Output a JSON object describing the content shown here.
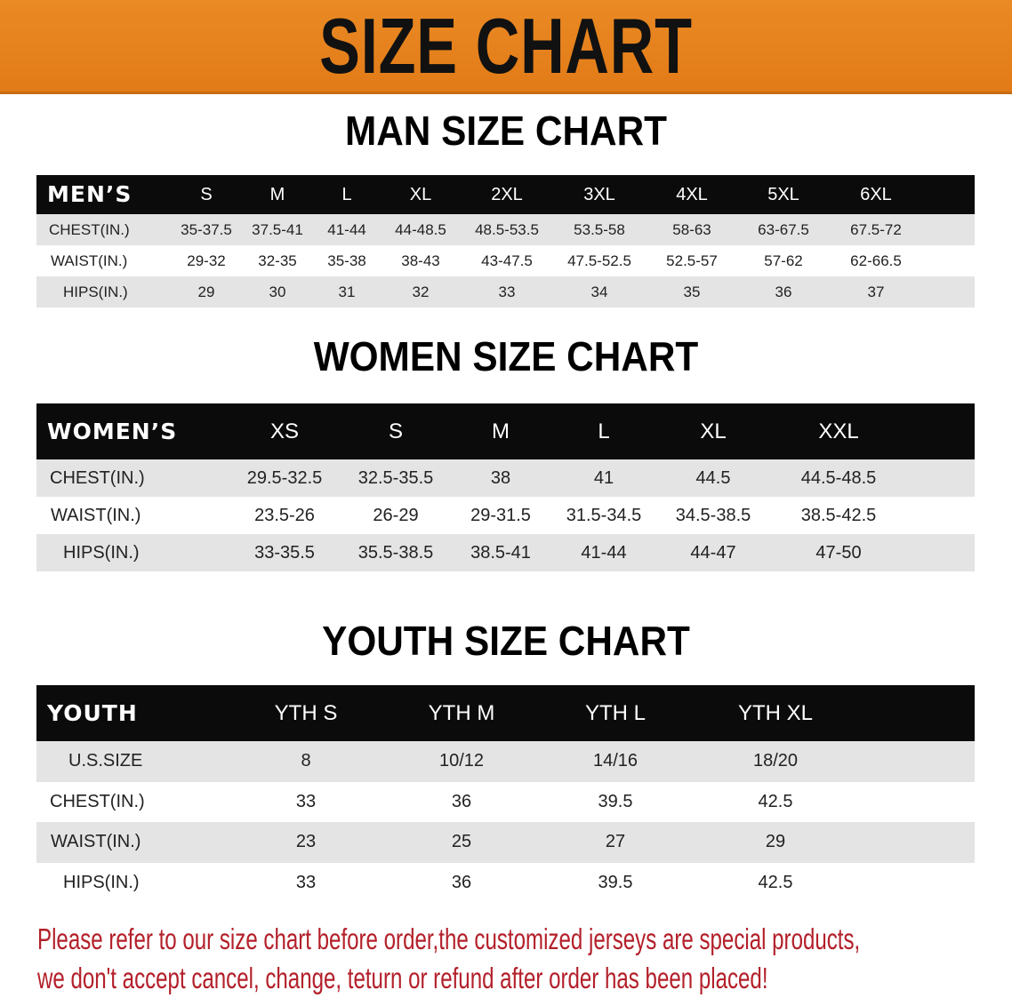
{
  "banner": {
    "title": "SIZE CHART",
    "color": "#e8821e"
  },
  "men": {
    "title": "MAN SIZE CHART",
    "header_label": "MEN’S",
    "sizes": [
      "S",
      "M",
      "L",
      "XL",
      "2XL",
      "3XL",
      "4XL",
      "5XL",
      "6XL"
    ],
    "rows": [
      {
        "label": "CHEST(IN.)",
        "values": [
          "35-37.5",
          "37.5-41",
          "41-44",
          "44-48.5",
          "48.5-53.5",
          "53.5-58",
          "58-63",
          "63-67.5",
          "67.5-72"
        ]
      },
      {
        "label": "WAIST(IN.)",
        "values": [
          "29-32",
          "32-35",
          "35-38",
          "38-43",
          "43-47.5",
          "47.5-52.5",
          "52.5-57",
          "57-62",
          "62-66.5"
        ]
      },
      {
        "label": "HIPS(IN.)",
        "values": [
          "29",
          "30",
          "31",
          "32",
          "33",
          "34",
          "35",
          "36",
          "37"
        ]
      }
    ]
  },
  "women": {
    "title": "WOMEN SIZE CHART",
    "header_label": "WOMEN’S",
    "sizes": [
      "XS",
      "S",
      "M",
      "L",
      "XL",
      "XXL"
    ],
    "rows": [
      {
        "label": "CHEST(IN.)",
        "values": [
          "29.5-32.5",
          "32.5-35.5",
          "38",
          "41",
          "44.5",
          "44.5-48.5"
        ]
      },
      {
        "label": "WAIST(IN.)",
        "values": [
          "23.5-26",
          "26-29",
          "29-31.5",
          "31.5-34.5",
          "34.5-38.5",
          "38.5-42.5"
        ]
      },
      {
        "label": "HIPS(IN.)",
        "values": [
          "33-35.5",
          "35.5-38.5",
          "38.5-41",
          "41-44",
          "44-47",
          "47-50"
        ]
      }
    ]
  },
  "youth": {
    "title": "YOUTH SIZE CHART",
    "header_label": "YOUTH",
    "sizes": [
      "YTH S",
      "YTH M",
      "YTH L",
      "YTH XL"
    ],
    "rows": [
      {
        "label": "U.S.SIZE",
        "values": [
          "8",
          "10/12",
          "14/16",
          "18/20"
        ]
      },
      {
        "label": "CHEST(IN.)",
        "values": [
          "33",
          "36",
          "39.5",
          "42.5"
        ]
      },
      {
        "label": "WAIST(IN.)",
        "values": [
          "23",
          "25",
          "27",
          "29"
        ]
      },
      {
        "label": "HIPS(IN.)",
        "values": [
          "33",
          "36",
          "39.5",
          "42.5"
        ]
      }
    ]
  },
  "notice": {
    "line1": "Please refer to our size chart before order,the customized jerseys are special products,",
    "line2": "we don't accept cancel, change, teturn or refund after order has been placed!",
    "color": "#b3202a"
  }
}
